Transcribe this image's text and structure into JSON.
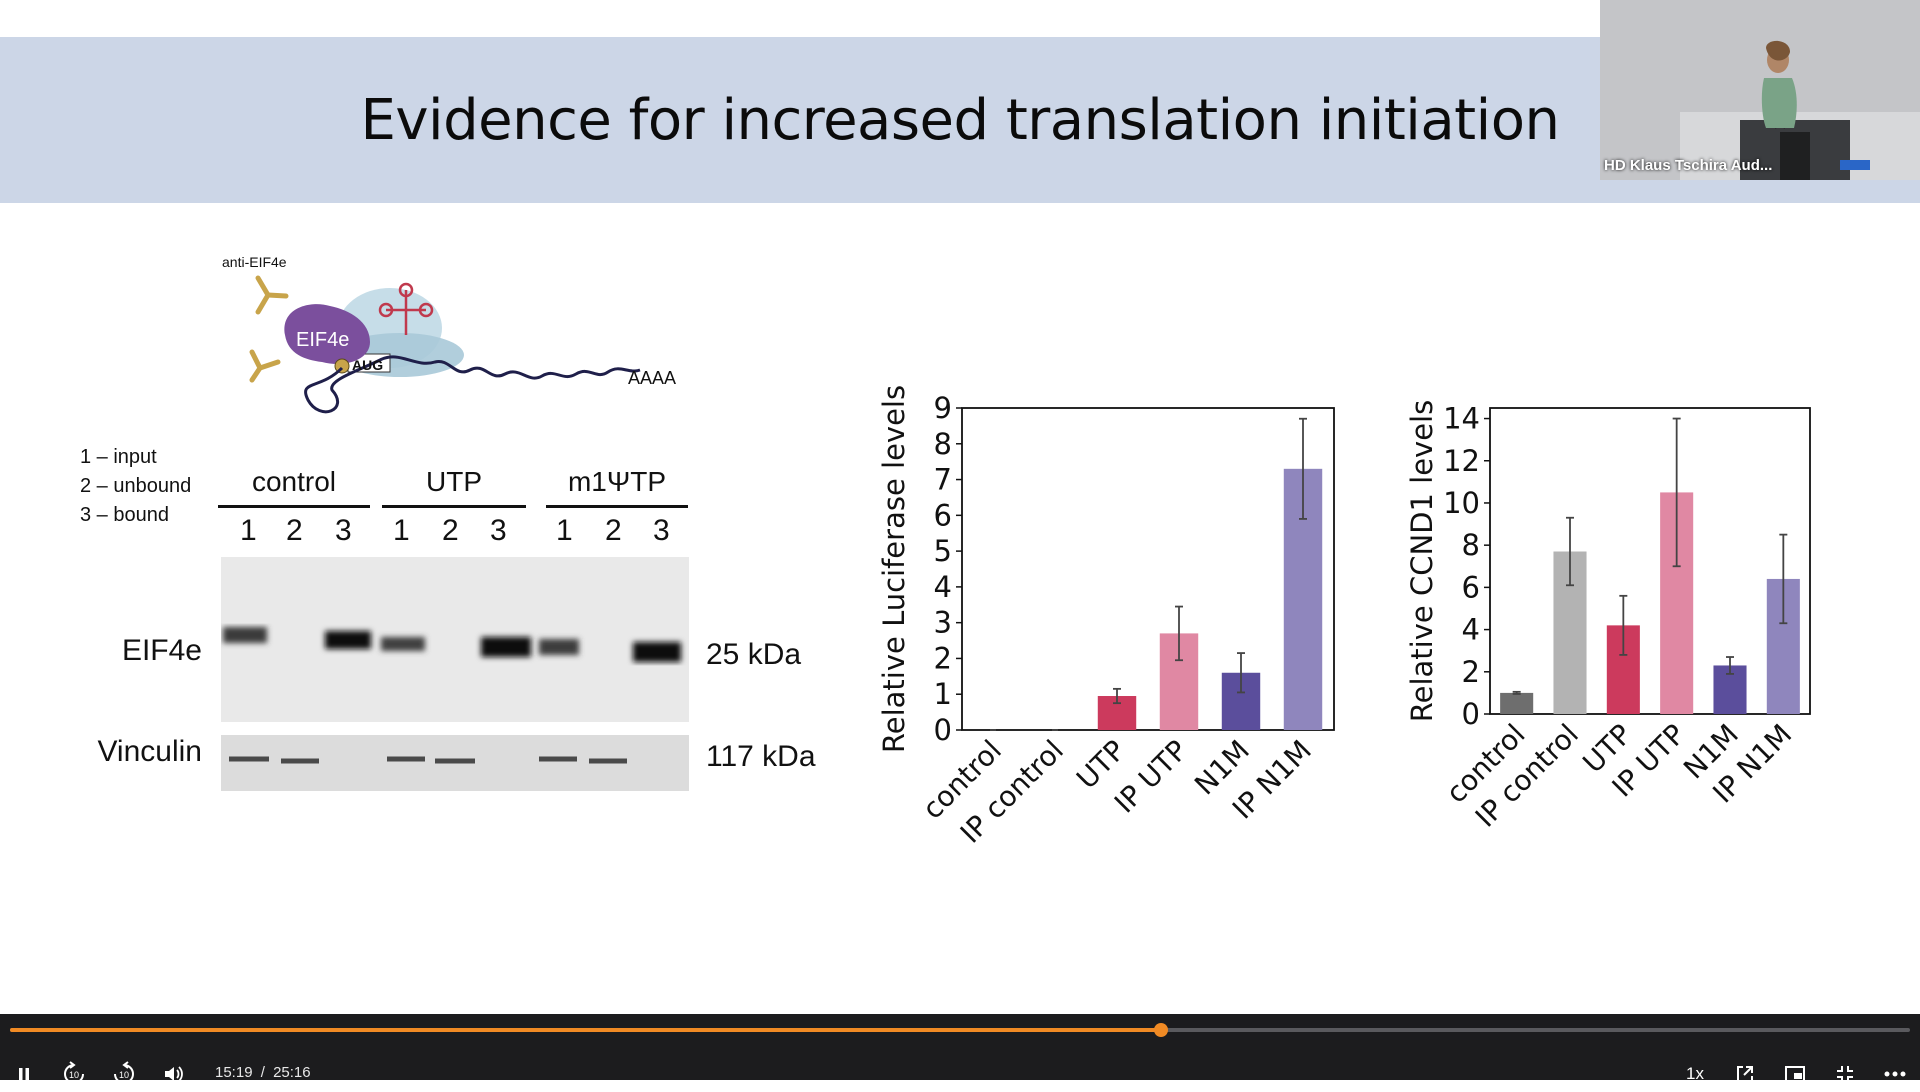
{
  "slide": {
    "title": "Evidence for increased translation initiation",
    "diagram": {
      "antibody_label": "anti-EIF4e",
      "protein_label": "EIF4e",
      "codon_label": "AUG",
      "polya_label": "AAAA"
    },
    "blot": {
      "legend": [
        "1 – input",
        "2 – unbound",
        "3 – bound"
      ],
      "groups": [
        "control",
        "UTP",
        "m1ΨTP"
      ],
      "lanes": [
        "1",
        "2",
        "3",
        "1",
        "2",
        "3",
        "1",
        "2",
        "3"
      ],
      "rows": [
        {
          "label": "EIF4e",
          "size": "25 kDa"
        },
        {
          "label": "Vinculin",
          "size": "117 kDa"
        }
      ]
    }
  },
  "chart_data": [
    {
      "type": "bar",
      "ylabel": "Relative Luciferase levels",
      "categories": [
        "control",
        "IP control",
        "UTP",
        "IP UTP",
        "N1M",
        "IP N1M"
      ],
      "values": [
        0,
        0,
        0.95,
        2.7,
        1.6,
        7.3
      ],
      "errors": [
        0,
        0,
        0.2,
        0.75,
        0.55,
        1.4
      ],
      "colors": [
        "#6e6e6e",
        "#b3b3b3",
        "#cc3a5d",
        "#e088a3",
        "#5b4e9c",
        "#8f86bd"
      ],
      "ylim": [
        0,
        9
      ],
      "yticks": [
        0,
        1,
        2,
        3,
        4,
        5,
        6,
        7,
        8,
        9
      ]
    },
    {
      "type": "bar",
      "ylabel": "Relative CCND1 levels",
      "categories": [
        "control",
        "IP control",
        "UTP",
        "IP UTP",
        "N1M",
        "IP N1M"
      ],
      "values": [
        1.0,
        7.7,
        4.2,
        10.5,
        2.3,
        6.4
      ],
      "errors": [
        0.05,
        1.6,
        1.4,
        3.5,
        0.4,
        2.1
      ],
      "colors": [
        "#6e6e6e",
        "#b3b3b3",
        "#cc3a5d",
        "#e088a3",
        "#5b4e9c",
        "#8f86bd"
      ],
      "ylim": [
        0,
        14.5
      ],
      "yticks": [
        0,
        2,
        4,
        6,
        8,
        10,
        12,
        14
      ]
    }
  ],
  "pip": {
    "caption": "HD Klaus Tschira Aud..."
  },
  "player": {
    "current_time": "15:19",
    "separator": "/",
    "duration": "25:16",
    "progress": 0.606,
    "speed": "1x",
    "accent": "#f08a24",
    "icons": [
      "pause-icon",
      "rewind-10-icon",
      "forward-10-icon",
      "volume-icon",
      "popout-icon",
      "miniplayer-icon",
      "exit-fullscreen-icon",
      "more-icon"
    ],
    "rewind_label": "10",
    "forward_label": "10"
  }
}
